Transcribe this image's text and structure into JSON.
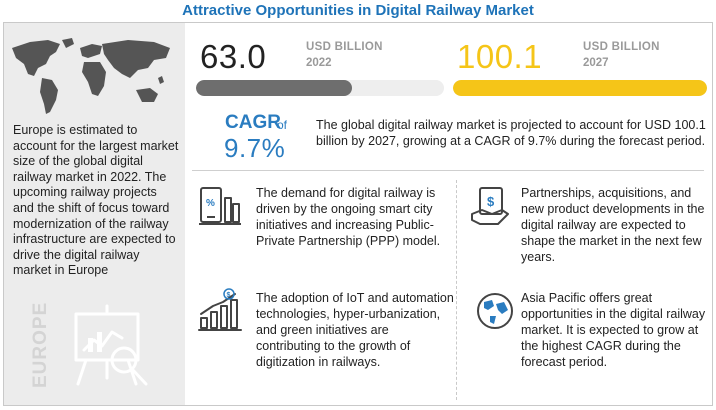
{
  "title": "Attractive Opportunities in Digital Railway Market",
  "left_panel": {
    "text": "Europe is estimated to account for the largest market size of the global digital railway market in 2022. The upcoming railway projects and the shift of focus toward modernization of the railway infrastructure are expected to drive the digital railway market in Europe",
    "region_label": "EUROPE"
  },
  "market_2022": {
    "value": "63.0",
    "unit": "USD BILLION",
    "year": "2022",
    "bar_fraction": 0.63,
    "bar_color": "#6e6e6e"
  },
  "market_2027": {
    "value": "100.1",
    "unit": "USD BILLION",
    "year": "2027",
    "bar_fraction": 1.0,
    "bar_color": "#f5c518"
  },
  "cagr": {
    "label": "CAGR",
    "of": "of",
    "value": "9.7%"
  },
  "summary": "The global digital railway market is projected to account for USD 100.1 billion by 2027, growing at a CAGR of 9.7% during the forecast period.",
  "points": [
    {
      "icon": "smart-city-icon",
      "text": "The demand for digital railway is driven by the ongoing smart city initiatives and increasing Public-Private Partnership (PPP) model."
    },
    {
      "icon": "money-hand-icon",
      "text": "Partnerships, acquisitions, and new product developments in the digital railway are expected to shape the market in the next few years."
    },
    {
      "icon": "growth-chart-icon",
      "text": "The adoption of IoT and automation technologies, hyper-urbanization, and green initiatives are contributing to the growth of digitization in railways."
    },
    {
      "icon": "globe-icon",
      "text": "Asia Pacific offers great opportunities in the digital railway market. It is expected to grow at the highest CAGR during the forecast period."
    }
  ],
  "colors": {
    "title": "#1e73b8",
    "cagr": "#2a7cc0",
    "accent_yellow": "#f5c518",
    "dark_bar": "#6e6e6e"
  }
}
